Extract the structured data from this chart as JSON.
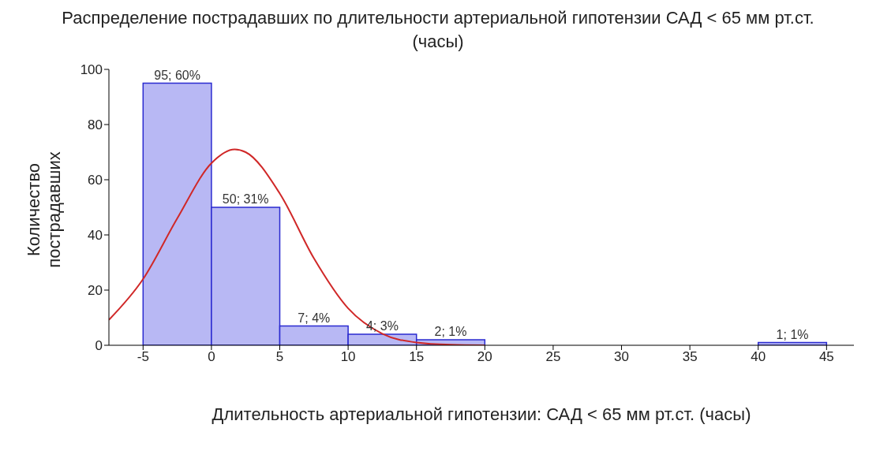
{
  "chart_data": {
    "type": "histogram",
    "title": "Распределение пострадавших по длительности артериальной гипотензии  САД < 65 мм рт.ст. (часы)",
    "xlabel": "Длительность артериальной гипотензии: САД < 65 мм рт.ст. (часы)",
    "ylabel": "Количество пострадавших",
    "bins": [
      -5,
      0,
      5,
      10,
      15,
      20,
      25,
      30,
      35,
      40,
      45
    ],
    "values": [
      95,
      50,
      7,
      4,
      2,
      0,
      0,
      0,
      0,
      1
    ],
    "value_labels": [
      "95; 60%",
      "50; 31%",
      "7; 4%",
      "4; 3%",
      "2; 1%",
      null,
      null,
      null,
      null,
      "1; 1%"
    ],
    "color": "#b8b8f4",
    "series": [
      {
        "type": "line",
        "color": "#d02828",
        "x": [
          -7.5,
          -5,
          -2.5,
          0,
          1.7,
          2.5,
          5,
          7.5,
          10,
          12.5,
          15,
          17.5,
          20
        ],
        "values": [
          9.2,
          24,
          46,
          66,
          71,
          70,
          55,
          31.5,
          13.4,
          4.2,
          1,
          0.2,
          0
        ]
      }
    ],
    "xlim": [
      -7.5,
      47
    ],
    "xticks": [
      -5,
      0,
      5,
      10,
      15,
      20,
      25,
      30,
      35,
      40,
      45
    ],
    "ylim": [
      0,
      100
    ],
    "yticks": [
      0,
      20,
      40,
      60,
      80,
      100
    ],
    "tick_labels": "xy"
  }
}
